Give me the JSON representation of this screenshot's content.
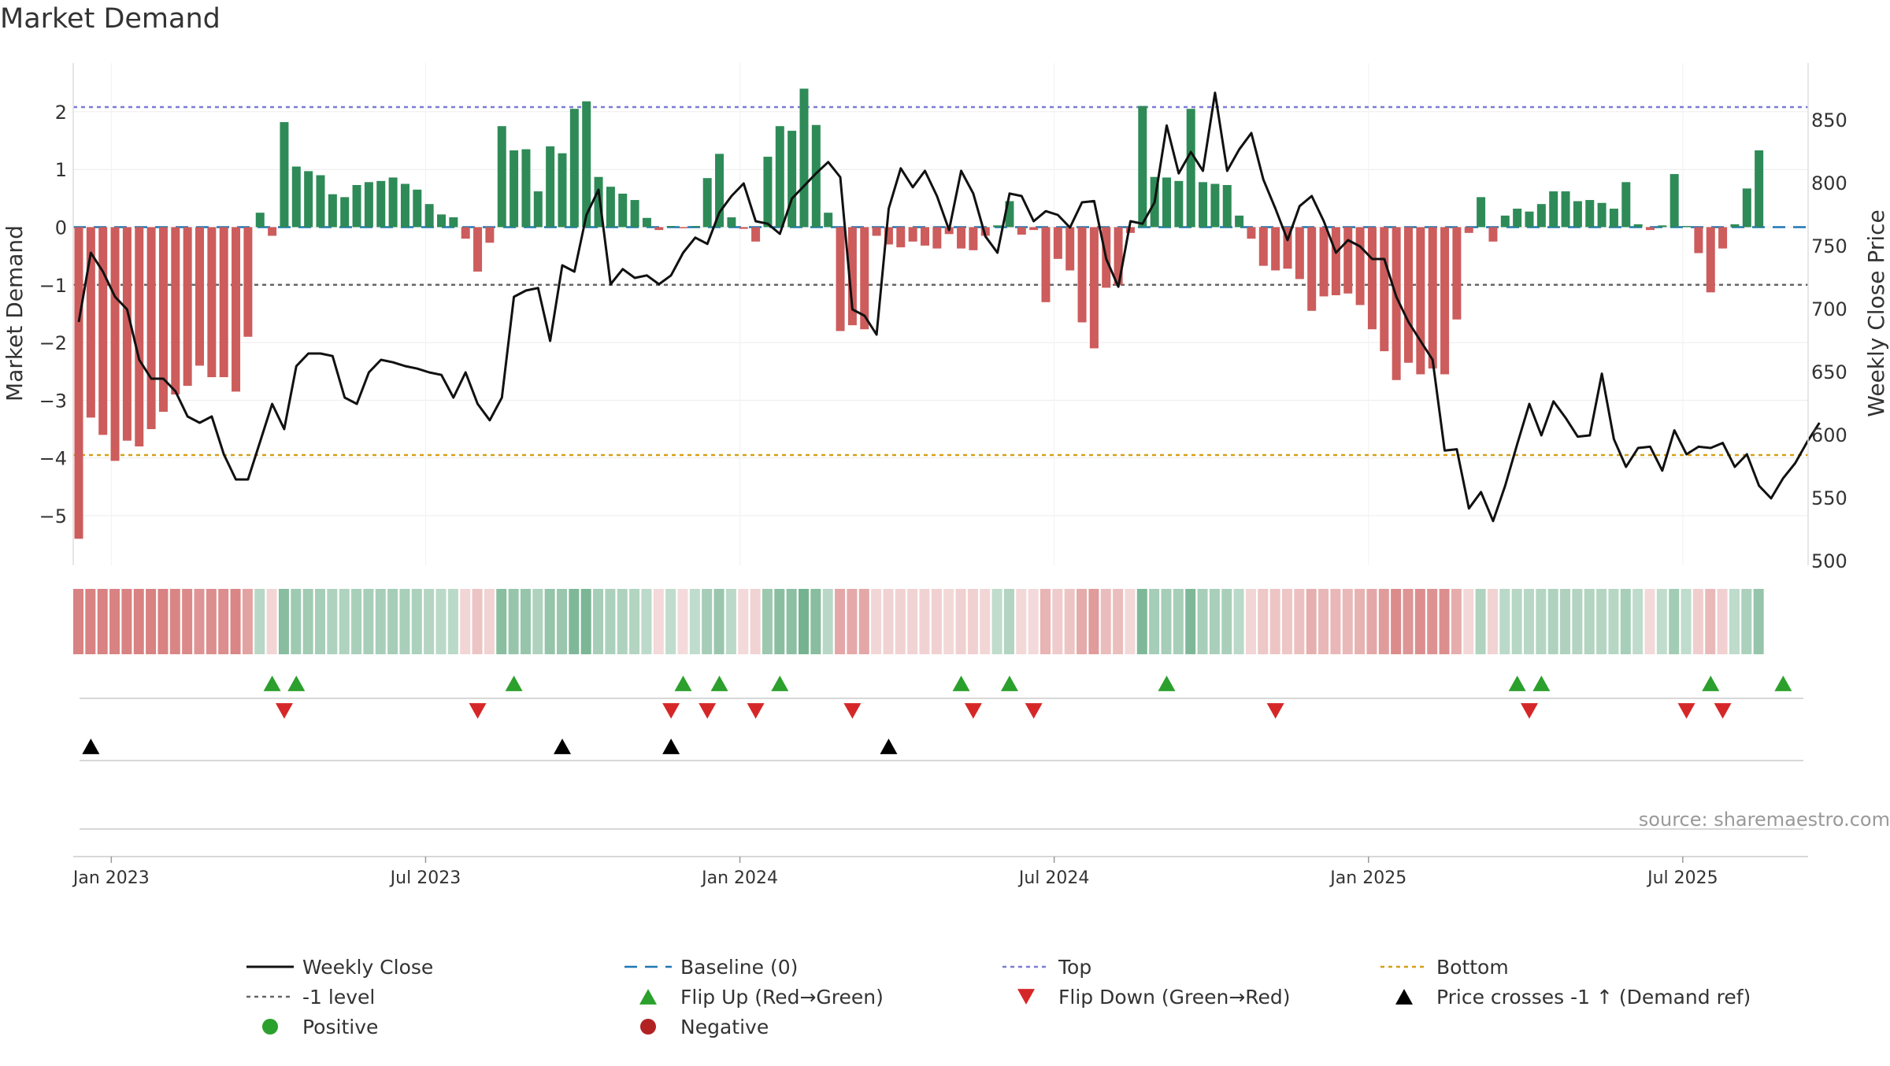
{
  "chart_data": {
    "type": "bar+line",
    "title": "Market Demand",
    "ylabel_left": "Market Demand",
    "ylabel_right": "Weekly Close Price",
    "left_ylim": [
      -5.8,
      2.9
    ],
    "left_ticks": [
      2,
      1,
      0,
      -1,
      -2,
      -3,
      -4,
      -5
    ],
    "right_ylim": [
      500,
      880
    ],
    "right_ticks": [
      850,
      800,
      750,
      700,
      650,
      600,
      550,
      500
    ],
    "levels": {
      "top": 2.08,
      "neg1": -1,
      "bottom": -3.95,
      "baseline": 0
    },
    "x_tick_labels": [
      "Jan 2023",
      "Jul 2023",
      "Jan 2024",
      "Jul 2024",
      "Jan 2025",
      "Jul 2025"
    ],
    "x_tick_weeks": [
      1,
      27,
      53,
      79,
      105,
      131
    ],
    "demand": [
      -5.4,
      -3.3,
      -3.6,
      -4.05,
      -3.7,
      -3.8,
      -3.5,
      -3.2,
      -2.9,
      -2.75,
      -2.4,
      -2.6,
      -2.6,
      -2.85,
      -1.9,
      0.25,
      -0.15,
      1.82,
      1.05,
      0.97,
      0.9,
      0.57,
      0.52,
      0.73,
      0.78,
      0.8,
      0.86,
      0.75,
      0.65,
      0.4,
      0.22,
      0.17,
      -0.2,
      -0.77,
      -0.27,
      1.75,
      1.33,
      1.35,
      0.62,
      1.4,
      1.28,
      2.05,
      2.18,
      0.87,
      0.7,
      0.58,
      0.47,
      0.16,
      -0.05,
      0.02,
      -0.02,
      0.02,
      0.85,
      1.27,
      0.17,
      -0.03,
      -0.25,
      1.22,
      1.75,
      1.67,
      2.4,
      1.77,
      0.25,
      -1.8,
      -1.7,
      -1.77,
      -0.15,
      -0.3,
      -0.35,
      -0.25,
      -0.32,
      -0.37,
      -0.12,
      -0.37,
      -0.4,
      -0.15,
      0.03,
      0.45,
      -0.13,
      -0.05,
      -1.3,
      -0.55,
      -0.75,
      -1.65,
      -2.1,
      -1.05,
      -1.0,
      -0.1,
      2.1,
      0.87,
      0.86,
      0.8,
      2.05,
      0.78,
      0.75,
      0.73,
      0.2,
      -0.2,
      -0.67,
      -0.75,
      -0.72,
      -0.9,
      -1.45,
      -1.2,
      -1.18,
      -1.15,
      -1.35,
      -1.77,
      -2.15,
      -2.65,
      -2.35,
      -2.55,
      -2.45,
      -2.55,
      -1.6,
      -0.1,
      0.52,
      -0.25,
      0.2,
      0.32,
      0.27,
      0.4,
      0.62,
      0.62,
      0.45,
      0.47,
      0.42,
      0.32,
      0.78,
      0.05,
      -0.05,
      0.03,
      0.92,
      0.02,
      -0.45,
      -1.13,
      -0.37,
      0.05,
      0.67,
      1.33
    ],
    "close": [
      690,
      745,
      730,
      710,
      700,
      660,
      645,
      645,
      635,
      615,
      610,
      615,
      585,
      565,
      565,
      595,
      625,
      605,
      655,
      665,
      665,
      663,
      630,
      625,
      650,
      660,
      658,
      655,
      653,
      650,
      648,
      630,
      650,
      625,
      612,
      630,
      710,
      715,
      717,
      675,
      735,
      730,
      775,
      795,
      720,
      732,
      725,
      727,
      720,
      727,
      745,
      757,
      752,
      777,
      790,
      800,
      770,
      768,
      760,
      788,
      798,
      808,
      817,
      805,
      700,
      695,
      680,
      780,
      812,
      797,
      810,
      790,
      763,
      810,
      792,
      758,
      745,
      792,
      790,
      770,
      778,
      775,
      765,
      785,
      786,
      740,
      718,
      770,
      768,
      785,
      846,
      808,
      825,
      810,
      872,
      810,
      827,
      840,
      803,
      780,
      755,
      782,
      790,
      770,
      745,
      755,
      750,
      740,
      740,
      710,
      690,
      675,
      660,
      588,
      589,
      542,
      555,
      532,
      560,
      593,
      625,
      600,
      627,
      614,
      599,
      600,
      649,
      597,
      575,
      590,
      591,
      572,
      604,
      585,
      591,
      590,
      594,
      575,
      585,
      560,
      550,
      566,
      578,
      595,
      610
    ],
    "flip_up_weeks": [
      16,
      18,
      36,
      50,
      53,
      58,
      73,
      77,
      90,
      119,
      121,
      135,
      141
    ],
    "flip_down_weeks": [
      17,
      33,
      49,
      52,
      56,
      64,
      74,
      79,
      99,
      120,
      133,
      136
    ],
    "cross_weeks": [
      1,
      40,
      49,
      67
    ],
    "source": "source: sharemaestro.com",
    "legend": {
      "weekly_close": "Weekly Close",
      "baseline": "Baseline (0)",
      "top": "Top",
      "bottom": "Bottom",
      "neg1_level": "-1 level",
      "flip_up": "Flip Up (Red→Green)",
      "flip_down": "Flip Down (Green→Red)",
      "price_cross": "Price crosses -1 ↑ (Demand ref)",
      "positive": "Positive",
      "negative": "Negative"
    },
    "colors": {
      "positive": "#2e8b57",
      "negative": "#cd5c5c",
      "close": "#111111",
      "top": "#7b7bd6",
      "bottom": "#d4a017",
      "neg1": "#666666",
      "baseline": "#1f77b4",
      "flip_up": "#2ca02c",
      "flip_down": "#d62728",
      "cross": "#000000",
      "pos_dot": "#2ca02c",
      "neg_dot": "#b22222"
    }
  }
}
